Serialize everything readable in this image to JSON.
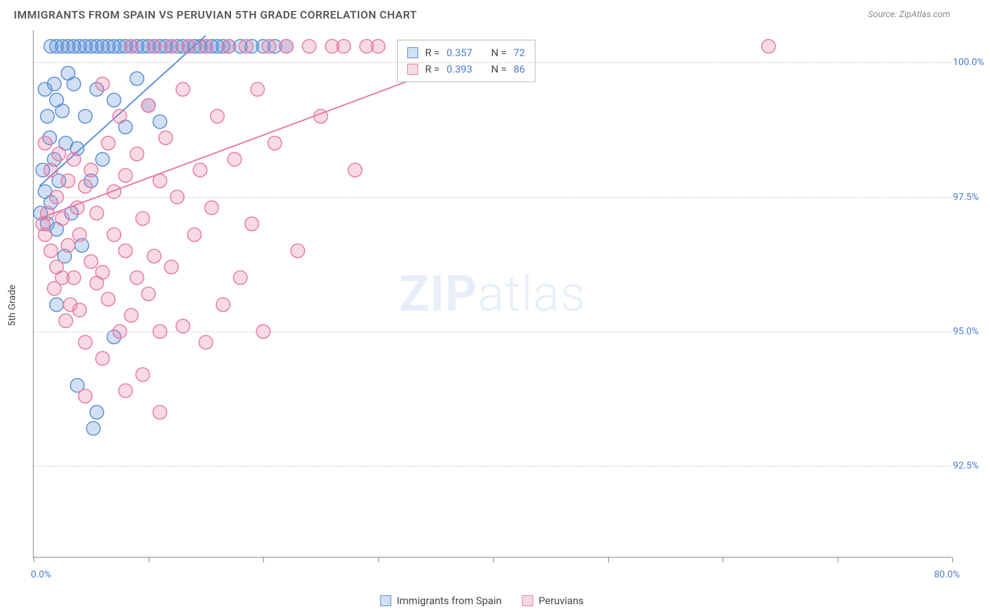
{
  "title": "IMMIGRANTS FROM SPAIN VS PERUVIAN 5TH GRADE CORRELATION CHART",
  "source": "Source: ZipAtlas.com",
  "watermark_bold": "ZIP",
  "watermark_light": "atlas",
  "yaxis_title": "5th Grade",
  "chart": {
    "type": "scatter",
    "xlim": [
      0,
      80
    ],
    "ylim": [
      90.8,
      100.6
    ],
    "xaxis_start_label": "0.0%",
    "xaxis_end_label": "80.0%",
    "xtick_positions": [
      0,
      10,
      20,
      30,
      40,
      50,
      60,
      70,
      80
    ],
    "yticks": [
      {
        "v": 100.0,
        "label": "100.0%"
      },
      {
        "v": 97.5,
        "label": "97.5%"
      },
      {
        "v": 95.0,
        "label": "95.0%"
      },
      {
        "v": 92.5,
        "label": "92.5%"
      }
    ],
    "background_color": "#ffffff",
    "grid_color": "#cccccc",
    "axis_color": "#888888",
    "tick_label_color": "#4a7bd0",
    "marker_radius": 10,
    "marker_stroke_width": 1.5,
    "marker_fill_opacity": 0.28,
    "trend_line_width": 2,
    "series": [
      {
        "name": "Immigrants from Spain",
        "color": "#5a8fd6",
        "fill": "#5a8fd6",
        "R": "0.357",
        "N": "72",
        "trend": {
          "x1": 0.5,
          "y1": 97.7,
          "x2": 15.0,
          "y2": 100.5
        },
        "points": [
          [
            0.6,
            97.2
          ],
          [
            0.8,
            98.0
          ],
          [
            1.0,
            97.6
          ],
          [
            1.0,
            99.5
          ],
          [
            1.2,
            97.0
          ],
          [
            1.2,
            99.0
          ],
          [
            1.4,
            98.6
          ],
          [
            1.5,
            97.4
          ],
          [
            1.5,
            100.3
          ],
          [
            1.8,
            98.2
          ],
          [
            1.8,
            99.6
          ],
          [
            2.0,
            96.9
          ],
          [
            2.0,
            99.3
          ],
          [
            2.0,
            100.3
          ],
          [
            2.2,
            97.8
          ],
          [
            2.5,
            99.1
          ],
          [
            2.5,
            100.3
          ],
          [
            2.7,
            96.4
          ],
          [
            2.8,
            98.5
          ],
          [
            3.0,
            99.8
          ],
          [
            3.0,
            100.3
          ],
          [
            3.3,
            97.2
          ],
          [
            3.5,
            99.6
          ],
          [
            3.5,
            100.3
          ],
          [
            3.8,
            98.4
          ],
          [
            4.0,
            100.3
          ],
          [
            4.2,
            96.6
          ],
          [
            4.5,
            99.0
          ],
          [
            4.5,
            100.3
          ],
          [
            5.0,
            97.8
          ],
          [
            5.0,
            100.3
          ],
          [
            5.2,
            93.2
          ],
          [
            5.5,
            99.5
          ],
          [
            5.5,
            100.3
          ],
          [
            6.0,
            98.2
          ],
          [
            6.0,
            100.3
          ],
          [
            6.5,
            100.3
          ],
          [
            7.0,
            94.9
          ],
          [
            7.0,
            99.3
          ],
          [
            7.0,
            100.3
          ],
          [
            7.5,
            100.3
          ],
          [
            8.0,
            98.8
          ],
          [
            8.0,
            100.3
          ],
          [
            8.5,
            100.3
          ],
          [
            9.0,
            100.3
          ],
          [
            9.0,
            99.7
          ],
          [
            9.5,
            100.3
          ],
          [
            10.0,
            100.3
          ],
          [
            10.0,
            99.2
          ],
          [
            10.5,
            100.3
          ],
          [
            11.0,
            100.3
          ],
          [
            11.0,
            98.9
          ],
          [
            11.5,
            100.3
          ],
          [
            12.0,
            100.3
          ],
          [
            12.5,
            100.3
          ],
          [
            13.0,
            100.3
          ],
          [
            13.5,
            100.3
          ],
          [
            14.0,
            100.3
          ],
          [
            14.5,
            100.3
          ],
          [
            15.0,
            100.3
          ],
          [
            15.5,
            100.3
          ],
          [
            16.0,
            100.3
          ],
          [
            16.5,
            100.3
          ],
          [
            17.0,
            100.3
          ],
          [
            18.0,
            100.3
          ],
          [
            19.0,
            100.3
          ],
          [
            20.0,
            100.3
          ],
          [
            21.0,
            100.3
          ],
          [
            22.0,
            100.3
          ],
          [
            3.8,
            94.0
          ],
          [
            2.0,
            95.5
          ],
          [
            5.5,
            93.5
          ]
        ]
      },
      {
        "name": "Peruvians",
        "color": "#e77ba2",
        "fill": "#e77ba2",
        "R": "0.393",
        "N": "86",
        "trend": {
          "x1": 0.5,
          "y1": 97.1,
          "x2": 42.0,
          "y2": 100.4
        },
        "points": [
          [
            0.8,
            97.0
          ],
          [
            1.0,
            96.8
          ],
          [
            1.0,
            98.5
          ],
          [
            1.2,
            97.2
          ],
          [
            1.5,
            96.5
          ],
          [
            1.5,
            98.0
          ],
          [
            1.8,
            95.8
          ],
          [
            2.0,
            97.5
          ],
          [
            2.0,
            96.2
          ],
          [
            2.2,
            98.3
          ],
          [
            2.5,
            96.0
          ],
          [
            2.5,
            97.1
          ],
          [
            2.8,
            95.2
          ],
          [
            3.0,
            97.8
          ],
          [
            3.0,
            96.6
          ],
          [
            3.2,
            95.5
          ],
          [
            3.5,
            98.2
          ],
          [
            3.5,
            96.0
          ],
          [
            3.8,
            97.3
          ],
          [
            4.0,
            95.4
          ],
          [
            4.0,
            96.8
          ],
          [
            4.5,
            97.7
          ],
          [
            4.5,
            94.8
          ],
          [
            5.0,
            96.3
          ],
          [
            5.0,
            98.0
          ],
          [
            5.5,
            95.9
          ],
          [
            5.5,
            97.2
          ],
          [
            6.0,
            96.1
          ],
          [
            6.0,
            94.5
          ],
          [
            6.5,
            98.5
          ],
          [
            6.5,
            95.6
          ],
          [
            7.0,
            96.8
          ],
          [
            7.0,
            97.6
          ],
          [
            7.5,
            95.0
          ],
          [
            7.5,
            99.0
          ],
          [
            8.0,
            96.5
          ],
          [
            8.0,
            97.9
          ],
          [
            8.5,
            95.3
          ],
          [
            8.5,
            100.3
          ],
          [
            9.0,
            96.0
          ],
          [
            9.0,
            98.3
          ],
          [
            9.5,
            97.1
          ],
          [
            9.5,
            94.2
          ],
          [
            10.0,
            95.7
          ],
          [
            10.0,
            99.2
          ],
          [
            10.5,
            96.4
          ],
          [
            10.5,
            100.3
          ],
          [
            11.0,
            97.8
          ],
          [
            11.0,
            95.0
          ],
          [
            11.5,
            98.6
          ],
          [
            12.0,
            96.2
          ],
          [
            12.0,
            100.3
          ],
          [
            12.5,
            97.5
          ],
          [
            13.0,
            95.1
          ],
          [
            13.0,
            99.5
          ],
          [
            13.5,
            100.3
          ],
          [
            14.0,
            96.8
          ],
          [
            14.5,
            98.0
          ],
          [
            15.0,
            100.3
          ],
          [
            15.0,
            94.8
          ],
          [
            15.5,
            97.3
          ],
          [
            16.0,
            99.0
          ],
          [
            16.5,
            95.5
          ],
          [
            17.0,
            100.3
          ],
          [
            17.5,
            98.2
          ],
          [
            18.0,
            96.0
          ],
          [
            18.5,
            100.3
          ],
          [
            19.0,
            97.0
          ],
          [
            19.5,
            99.5
          ],
          [
            20.0,
            95.0
          ],
          [
            20.5,
            100.3
          ],
          [
            21.0,
            98.5
          ],
          [
            22.0,
            100.3
          ],
          [
            23.0,
            96.5
          ],
          [
            24.0,
            100.3
          ],
          [
            25.0,
            99.0
          ],
          [
            26.0,
            100.3
          ],
          [
            27.0,
            100.3
          ],
          [
            28.0,
            98.0
          ],
          [
            29.0,
            100.3
          ],
          [
            30.0,
            100.3
          ],
          [
            64.0,
            100.3
          ],
          [
            8.0,
            93.9
          ],
          [
            11.0,
            93.5
          ],
          [
            4.5,
            93.8
          ],
          [
            6.0,
            99.6
          ]
        ]
      }
    ]
  },
  "legend": {
    "series1_label": "Immigrants from Spain",
    "series2_label": "Peruvians"
  },
  "stats_labels": {
    "R": "R =",
    "N": "N ="
  }
}
